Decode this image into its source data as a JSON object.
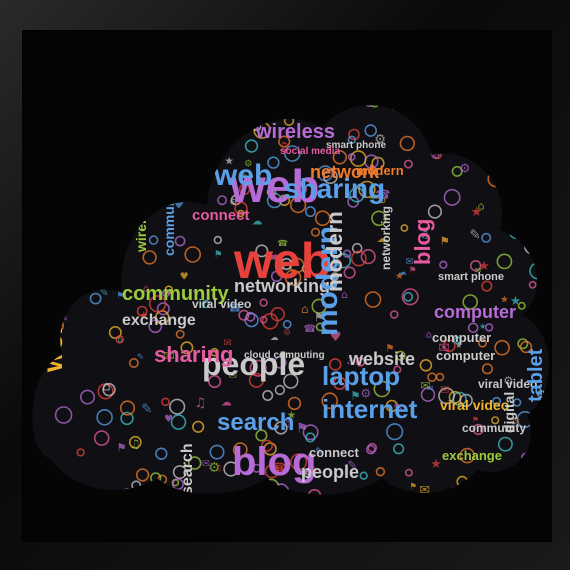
{
  "image": {
    "subject": "Word cloud shaped like a cloud on a black background inside a black frame",
    "colors": {
      "background": "#050505",
      "frame": "#1a1a1a",
      "palette": [
        "#e8413c",
        "#b66bd6",
        "#5aa0e8",
        "#9ccc3c",
        "#f0b429",
        "#3fc1c9",
        "#f07a2a",
        "#e65aa0",
        "#c9c9c9"
      ]
    },
    "words": [
      {
        "text": "web",
        "color": "#b66bd6",
        "size": 46,
        "rot": 0
      },
      {
        "text": "web",
        "color": "#e8413c",
        "size": 50,
        "rot": 0
      },
      {
        "text": "blog",
        "color": "#b66bd6",
        "size": 40,
        "rot": 0
      },
      {
        "text": "people",
        "color": "#c9c9c9",
        "size": 32,
        "rot": 0
      },
      {
        "text": "laptop",
        "color": "#5aa0e8",
        "size": 26,
        "rot": 0
      },
      {
        "text": "internet",
        "color": "#5aa0e8",
        "size": 26,
        "rot": 0
      },
      {
        "text": "search",
        "color": "#5aa0e8",
        "size": 24,
        "rot": 0
      },
      {
        "text": "sharing",
        "color": "#5aa0e8",
        "size": 28,
        "rot": 0
      },
      {
        "text": "sharing",
        "color": "#e65aa0",
        "size": 22,
        "rot": 0
      },
      {
        "text": "web",
        "color": "#5aa0e8",
        "size": 30,
        "rot": 0
      },
      {
        "text": "wireless",
        "color": "#b66bd6",
        "size": 20,
        "rot": 0
      },
      {
        "text": "network",
        "color": "#f07a2a",
        "size": 18,
        "rot": 0
      },
      {
        "text": "connect",
        "color": "#e65aa0",
        "size": 15,
        "rot": 0
      },
      {
        "text": "networking",
        "color": "#c9c9c9",
        "size": 18,
        "rot": 0
      },
      {
        "text": "community",
        "color": "#9ccc3c",
        "size": 20,
        "rot": 0
      },
      {
        "text": "exchange",
        "color": "#c9c9c9",
        "size": 16,
        "rot": 0
      },
      {
        "text": "computer",
        "color": "#b66bd6",
        "size": 18,
        "rot": 0
      },
      {
        "text": "computer",
        "color": "#c9c9c9",
        "size": 13,
        "rot": 0
      },
      {
        "text": "computer",
        "color": "#c9c9c9",
        "size": 13,
        "rot": 0
      },
      {
        "text": "website",
        "color": "#c9c9c9",
        "size": 18,
        "rot": 0
      },
      {
        "text": "viral video",
        "color": "#f0b429",
        "size": 14,
        "rot": 0
      },
      {
        "text": "viral video",
        "color": "#c9c9c9",
        "size": 12,
        "rot": 0
      },
      {
        "text": "viral video",
        "color": "#c9c9c9",
        "size": 12,
        "rot": 0
      },
      {
        "text": "modern",
        "color": "#f07a2a",
        "size": 13,
        "rot": 0
      },
      {
        "text": "modern",
        "color": "#5aa0e8",
        "size": 30,
        "rot": -90
      },
      {
        "text": "modern",
        "color": "#c9c9c9",
        "size": 22,
        "rot": -90
      },
      {
        "text": "blog",
        "color": "#e65aa0",
        "size": 22,
        "rot": -90
      },
      {
        "text": "web",
        "color": "#f0b429",
        "size": 28,
        "rot": -90
      },
      {
        "text": "tablet",
        "color": "#5aa0e8",
        "size": 20,
        "rot": -90
      },
      {
        "text": "digital",
        "color": "#c9c9c9",
        "size": 14,
        "rot": -90
      },
      {
        "text": "smart phone",
        "color": "#c9c9c9",
        "size": 11,
        "rot": 0
      },
      {
        "text": "smart phone",
        "color": "#c9c9c9",
        "size": 10,
        "rot": 0
      },
      {
        "text": "social media",
        "color": "#e65aa0",
        "size": 10,
        "rot": 0
      },
      {
        "text": "cloud computing",
        "color": "#c9c9c9",
        "size": 10,
        "rot": 0
      },
      {
        "text": "exchange",
        "color": "#9ccc3c",
        "size": 13,
        "rot": 0
      },
      {
        "text": "community",
        "color": "#c9c9c9",
        "size": 12,
        "rot": 0
      },
      {
        "text": "connect",
        "color": "#c9c9c9",
        "size": 13,
        "rot": 0
      },
      {
        "text": "people",
        "color": "#c9c9c9",
        "size": 18,
        "rot": 0
      },
      {
        "text": "networking",
        "color": "#c9c9c9",
        "size": 12,
        "rot": -90
      },
      {
        "text": "community",
        "color": "#5aa0e8",
        "size": 14,
        "rot": -90
      },
      {
        "text": "search",
        "color": "#c9c9c9",
        "size": 16,
        "rot": -90
      },
      {
        "text": "wireless",
        "color": "#9ccc3c",
        "size": 14,
        "rot": -90
      }
    ]
  }
}
